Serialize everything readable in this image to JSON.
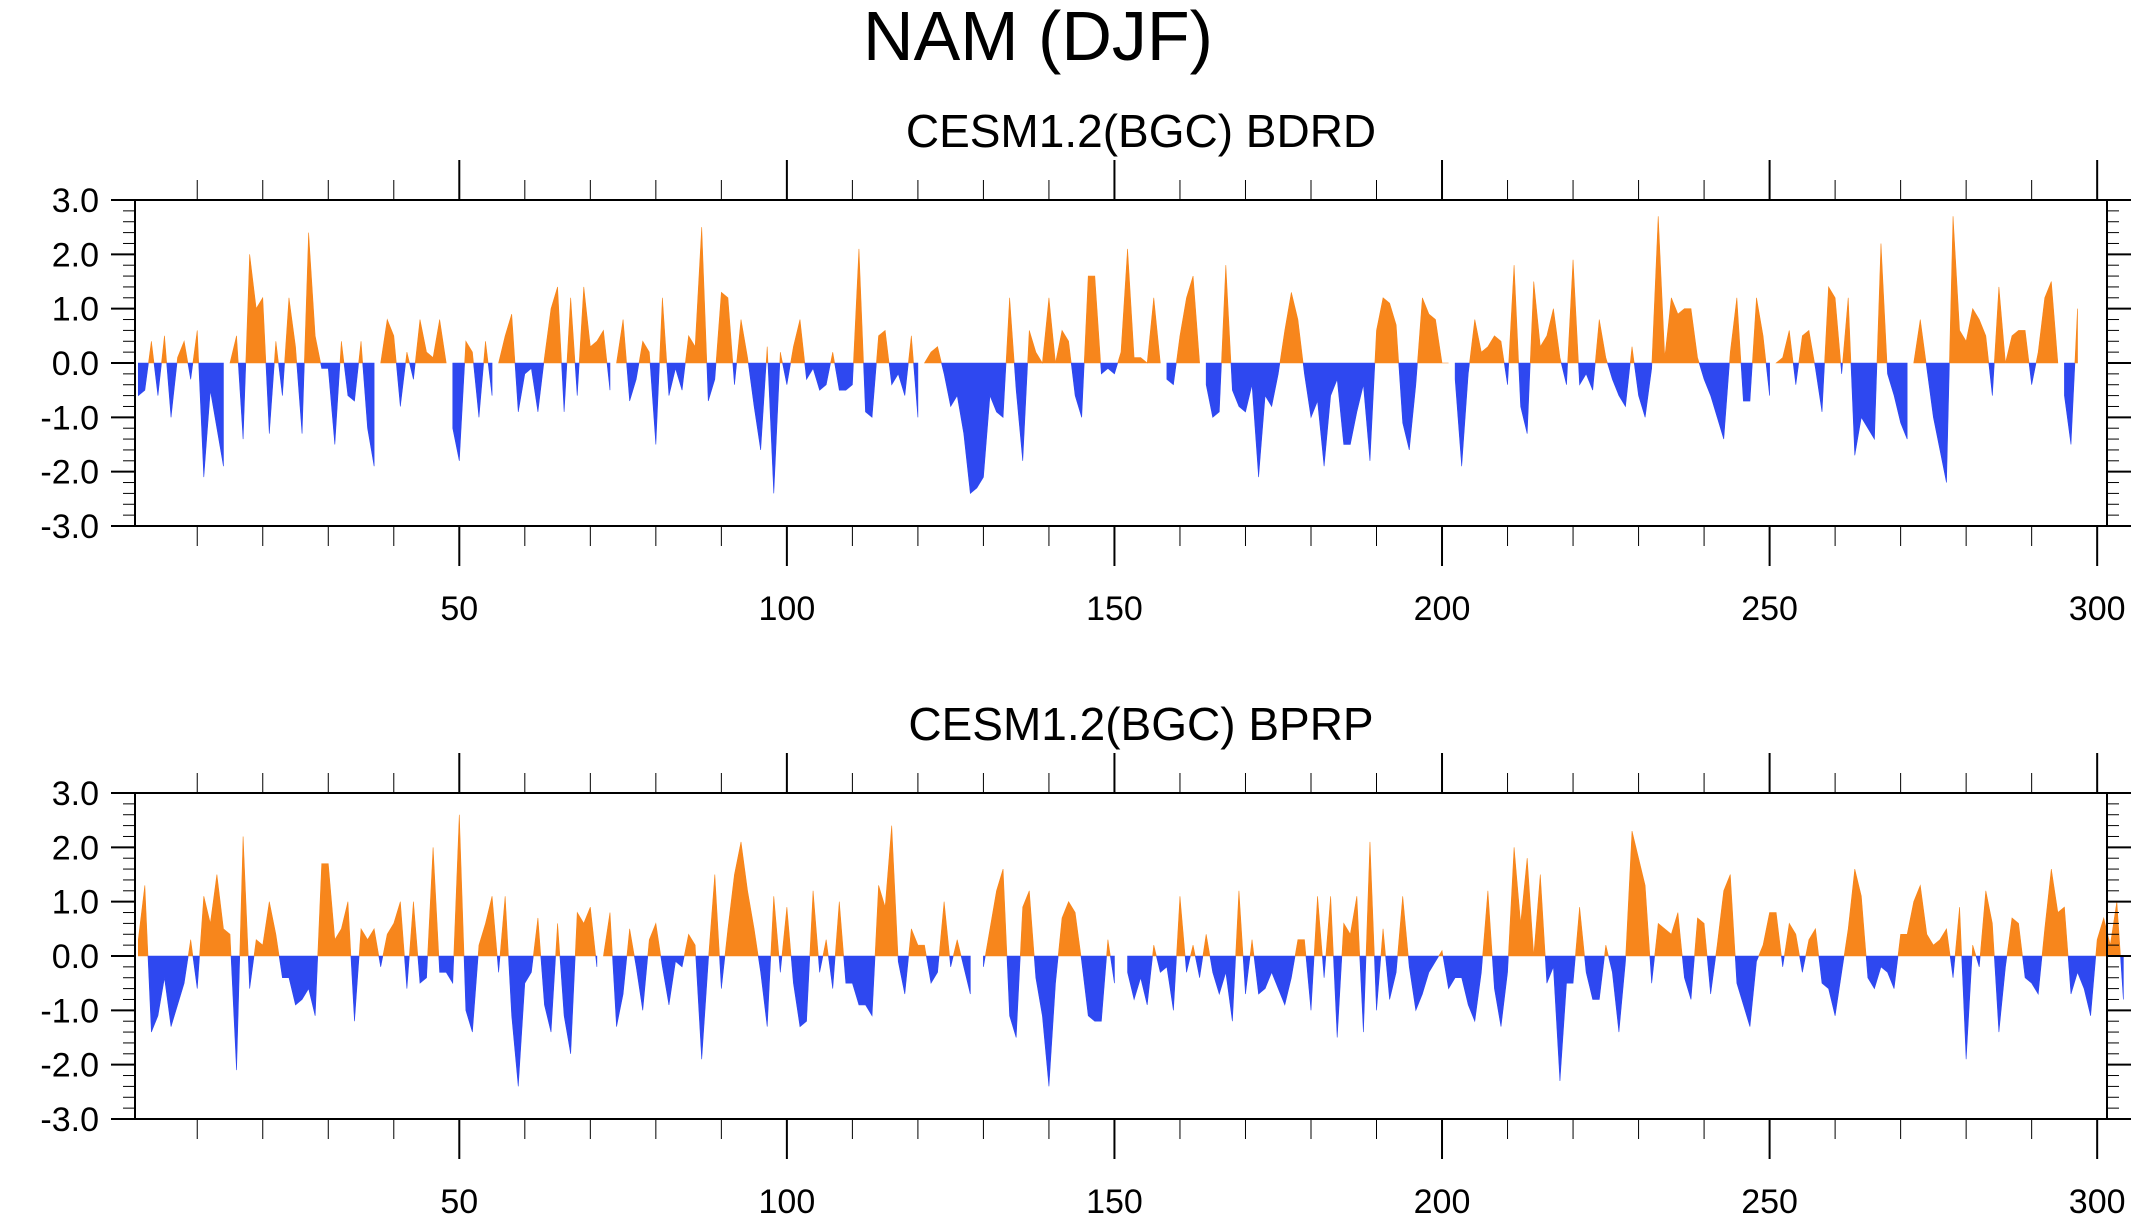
{
  "figure": {
    "title": "NAM (DJF)"
  },
  "colors": {
    "positive": "#f7861c",
    "negative": "#2e48f0",
    "axis": "#000000",
    "background": "#ffffff"
  },
  "chart_data": [
    {
      "type": "area",
      "title": "CESM1.2(BGC) BDRD",
      "xlabel": "",
      "ylabel": "",
      "xlim": [
        1,
        300
      ],
      "ylim": [
        -3.0,
        3.0
      ],
      "xticks": [
        50,
        100,
        150,
        200,
        250,
        300
      ],
      "xtick_labels": [
        "50",
        "100",
        "150",
        "200",
        "250",
        "300"
      ],
      "yticks": [
        -3.0,
        -2.0,
        -1.0,
        0.0,
        1.0,
        2.0,
        3.0
      ],
      "ytick_labels": [
        "-3.0",
        "-2.0",
        "-1.0",
        "0.0",
        "1.0",
        "2.0",
        "3.0"
      ],
      "fill_above_zero": "positive",
      "fill_below_zero": "negative",
      "x_start": 1,
      "values": [
        -0.6,
        -0.5,
        0.4,
        -0.6,
        0.5,
        -1.0,
        0.1,
        0.4,
        -0.3,
        0.6,
        -2.1,
        -0.5,
        -1.2,
        -1.9,
        0.0,
        0.5,
        -1.4,
        2.0,
        1.0,
        1.2,
        -1.3,
        0.4,
        -0.6,
        1.2,
        0.3,
        -1.3,
        2.4,
        0.5,
        -0.1,
        -0.1,
        -1.5,
        0.4,
        -0.6,
        -0.7,
        0.4,
        -1.2,
        -1.9,
        0.0,
        0.8,
        0.5,
        -0.8,
        0.2,
        -0.3,
        0.8,
        0.2,
        0.1,
        0.8,
        0.0,
        -1.2,
        -1.8,
        0.4,
        0.2,
        -1.0,
        0.4,
        -0.6,
        0.0,
        0.5,
        0.9,
        -0.9,
        -0.2,
        -0.1,
        -0.9,
        0.1,
        1.0,
        1.4,
        -0.9,
        1.2,
        -0.6,
        1.4,
        0.3,
        0.4,
        0.6,
        -0.5,
        0.0,
        0.8,
        -0.7,
        -0.3,
        0.4,
        0.2,
        -1.5,
        1.2,
        -0.6,
        -0.1,
        -0.5,
        0.5,
        0.3,
        2.5,
        -0.7,
        -0.3,
        1.3,
        1.2,
        -0.4,
        0.8,
        0.1,
        -0.8,
        -1.6,
        0.3,
        -2.4,
        0.2,
        -0.4,
        0.3,
        0.8,
        -0.3,
        -0.1,
        -0.5,
        -0.4,
        0.2,
        -0.5,
        -0.5,
        -0.4,
        2.1,
        -0.9,
        -1.0,
        0.5,
        0.6,
        -0.4,
        -0.2,
        -0.6,
        0.5,
        -1.0,
        0.0,
        0.2,
        0.3,
        -0.2,
        -0.8,
        -0.6,
        -1.3,
        -2.4,
        -2.3,
        -2.1,
        -0.6,
        -0.9,
        -1.0,
        1.2,
        -0.5,
        -1.8,
        0.6,
        0.2,
        0.0,
        1.2,
        0.0,
        0.6,
        0.4,
        -0.6,
        -1.0,
        1.6,
        1.6,
        -0.2,
        -0.1,
        -0.2,
        0.2,
        2.1,
        0.1,
        0.1,
        0.0,
        1.2,
        0.0,
        -0.3,
        -0.4,
        0.5,
        1.2,
        1.6,
        0.0,
        -0.4,
        -1.0,
        -0.9,
        1.8,
        -0.5,
        -0.8,
        -0.9,
        -0.4,
        -2.1,
        -0.6,
        -0.8,
        -0.2,
        0.6,
        1.3,
        0.8,
        -0.2,
        -1.0,
        -0.7,
        -1.9,
        -0.6,
        -0.3,
        -1.5,
        -1.5,
        -0.9,
        -0.4,
        -1.8,
        0.6,
        1.2,
        1.1,
        0.7,
        -1.1,
        -1.6,
        -0.4,
        1.2,
        0.9,
        0.8,
        0.0,
        0.0,
        -0.3,
        -1.9,
        -0.2,
        0.8,
        0.2,
        0.3,
        0.5,
        0.4,
        -0.4,
        1.8,
        -0.8,
        -1.3,
        1.5,
        0.3,
        0.5,
        1.0,
        0.1,
        -0.4,
        1.9,
        -0.4,
        -0.2,
        -0.5,
        0.8,
        0.1,
        -0.3,
        -0.6,
        -0.8,
        0.3,
        -0.6,
        -1.0,
        -0.1,
        2.7,
        0.1,
        1.2,
        0.9,
        1.0,
        1.0,
        0.1,
        -0.3,
        -0.6,
        -1.0,
        -1.4,
        0.2,
        1.2,
        -0.7,
        -0.7,
        1.2,
        0.5,
        -0.6,
        0.0,
        0.1,
        0.6,
        -0.4,
        0.5,
        0.6,
        -0.1,
        -0.9,
        1.4,
        1.2,
        -0.2,
        1.2,
        -1.7,
        -1.0,
        -1.2,
        -1.4,
        2.2,
        -0.2,
        -0.6,
        -1.1,
        -1.4,
        0.0,
        0.8,
        -0.1,
        -1.0,
        -1.6,
        -2.2,
        2.7,
        0.6,
        0.4,
        1.0,
        0.8,
        0.5,
        -0.6,
        1.4,
        0.0,
        0.5,
        0.6,
        0.6,
        -0.4,
        0.2,
        1.2,
        1.5,
        0.0,
        -0.6,
        -1.5,
        1.0
      ]
    },
    {
      "type": "area",
      "title": "CESM1.2(BGC) BPRP",
      "xlabel": "",
      "ylabel": "",
      "xlim": [
        1,
        300
      ],
      "ylim": [
        -3.0,
        3.0
      ],
      "xticks": [
        50,
        100,
        150,
        200,
        250,
        300
      ],
      "xtick_labels": [
        "50",
        "100",
        "150",
        "200",
        "250",
        "300"
      ],
      "yticks": [
        -3.0,
        -2.0,
        -1.0,
        0.0,
        1.0,
        2.0,
        3.0
      ],
      "ytick_labels": [
        "-3.0",
        "-2.0",
        "-1.0",
        "0.0",
        "1.0",
        "2.0",
        "3.0"
      ],
      "fill_above_zero": "positive",
      "fill_below_zero": "negative",
      "x_start": 1,
      "values": [
        0.3,
        1.3,
        -1.4,
        -1.1,
        -0.4,
        -1.3,
        -0.9,
        -0.5,
        0.3,
        -0.6,
        1.1,
        0.6,
        1.5,
        0.5,
        0.4,
        -2.1,
        2.2,
        -0.6,
        0.3,
        0.2,
        1.0,
        0.4,
        -0.4,
        -0.4,
        -0.9,
        -0.8,
        -0.6,
        -1.1,
        1.7,
        1.7,
        0.3,
        0.5,
        1.0,
        -1.2,
        0.5,
        0.3,
        0.5,
        -0.2,
        0.4,
        0.6,
        1.0,
        -0.6,
        1.0,
        -0.5,
        -0.4,
        2.0,
        -0.3,
        -0.3,
        -0.5,
        2.6,
        -1.0,
        -1.4,
        0.2,
        0.6,
        1.1,
        -0.3,
        1.1,
        -1.1,
        -2.4,
        -0.5,
        -0.3,
        0.7,
        -0.9,
        -1.4,
        0.6,
        -1.1,
        -1.8,
        0.8,
        0.6,
        0.9,
        -0.2,
        0.0,
        0.8,
        -1.3,
        -0.7,
        0.5,
        -0.2,
        -1.0,
        0.3,
        0.6,
        -0.2,
        -0.9,
        -0.1,
        -0.2,
        0.4,
        0.2,
        -1.9,
        -0.1,
        1.5,
        -0.6,
        0.5,
        1.5,
        2.1,
        1.2,
        0.5,
        -0.3,
        -1.3,
        1.1,
        -0.3,
        0.9,
        -0.5,
        -1.3,
        -1.2,
        1.2,
        -0.3,
        0.3,
        -0.6,
        1.0,
        -0.5,
        -0.5,
        -0.9,
        -0.9,
        -1.1,
        1.3,
        0.9,
        2.4,
        -0.1,
        -0.7,
        0.5,
        0.2,
        0.2,
        -0.5,
        -0.3,
        1.0,
        -0.2,
        0.3,
        -0.2,
        -0.7,
        0.0,
        -0.2,
        0.5,
        1.2,
        1.6,
        -1.1,
        -1.5,
        0.9,
        1.2,
        -0.4,
        -1.1,
        -2.4,
        -0.5,
        0.7,
        1.0,
        0.8,
        -0.1,
        -1.1,
        -1.2,
        -1.2,
        0.3,
        -0.5,
        0.0,
        -0.3,
        -0.8,
        -0.4,
        -0.9,
        0.2,
        -0.3,
        -0.2,
        -1.0,
        1.1,
        -0.3,
        0.2,
        -0.4,
        0.4,
        -0.3,
        -0.7,
        -0.3,
        -1.2,
        1.2,
        -0.7,
        0.3,
        -0.7,
        -0.6,
        -0.3,
        -0.6,
        -0.9,
        -0.4,
        0.3,
        0.3,
        -1.0,
        1.1,
        -0.4,
        1.1,
        -1.5,
        0.6,
        0.4,
        1.1,
        -1.4,
        2.1,
        -1.0,
        0.5,
        -0.8,
        -0.3,
        1.1,
        -0.2,
        -1.0,
        -0.7,
        -0.3,
        -0.1,
        0.1,
        -0.6,
        -0.4,
        -0.4,
        -0.9,
        -1.2,
        -0.3,
        1.2,
        -0.6,
        -1.3,
        -0.3,
        2.0,
        0.6,
        1.8,
        0.0,
        1.5,
        -0.5,
        -0.2,
        -2.3,
        -0.5,
        -0.5,
        0.9,
        -0.3,
        -0.8,
        -0.8,
        0.2,
        -0.3,
        -1.4,
        -0.1,
        2.3,
        1.8,
        1.3,
        -0.5,
        0.6,
        0.5,
        0.4,
        0.8,
        -0.4,
        -0.8,
        0.7,
        0.6,
        -0.7,
        0.2,
        1.2,
        1.5,
        -0.5,
        -0.9,
        -1.3,
        -0.1,
        0.2,
        0.8,
        0.8,
        -0.2,
        0.6,
        0.4,
        -0.3,
        0.3,
        0.5,
        -0.5,
        -0.6,
        -1.1,
        -0.3,
        0.5,
        1.6,
        1.1,
        -0.4,
        -0.6,
        -0.2,
        -0.3,
        -0.6,
        0.4,
        0.4,
        1.0,
        1.3,
        0.4,
        0.2,
        0.3,
        0.5,
        -0.4,
        0.9,
        -1.9,
        0.2,
        -0.2,
        1.2,
        0.6,
        -1.4,
        -0.2,
        0.7,
        0.6,
        -0.4,
        -0.5,
        -0.7,
        0.5,
        1.6,
        0.8,
        0.9,
        -0.7,
        -0.3,
        -0.6,
        -1.1,
        0.3,
        0.7,
        0.2,
        1.0,
        -0.8
      ]
    }
  ]
}
